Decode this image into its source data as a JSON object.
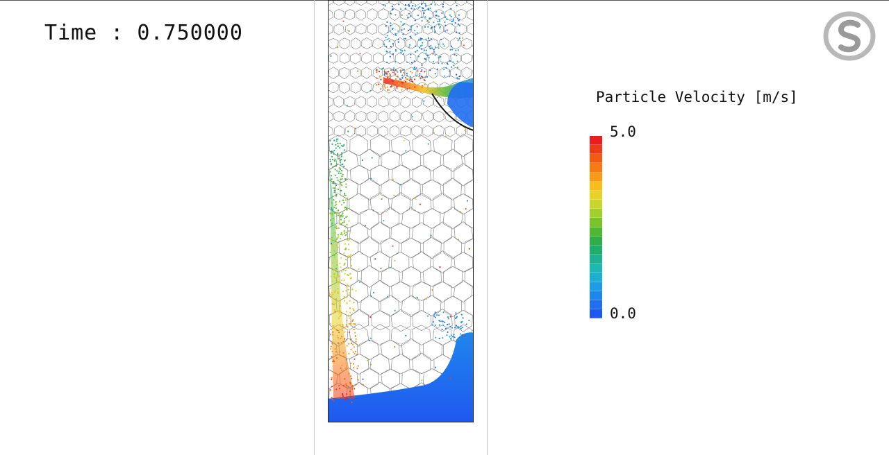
{
  "time_readout": "Time : 0.750000",
  "legend": {
    "title": "Particle Velocity [m/s]",
    "max_label": "5.0",
    "min_label": "0.0",
    "colors": [
      "#e81e1e",
      "#ef3a17",
      "#f35a14",
      "#f77a12",
      "#f99a14",
      "#f7bd1a",
      "#e6d32a",
      "#c9d52e",
      "#a3cf2a",
      "#79c42b",
      "#4fb732",
      "#2fae48",
      "#1fae6c",
      "#1fb290",
      "#1db7b4",
      "#1dafd2",
      "#1e9ce6",
      "#1f86ee",
      "#206ef2",
      "#1f58f0"
    ]
  },
  "logo": {
    "icon": "company-logo-icon"
  }
}
